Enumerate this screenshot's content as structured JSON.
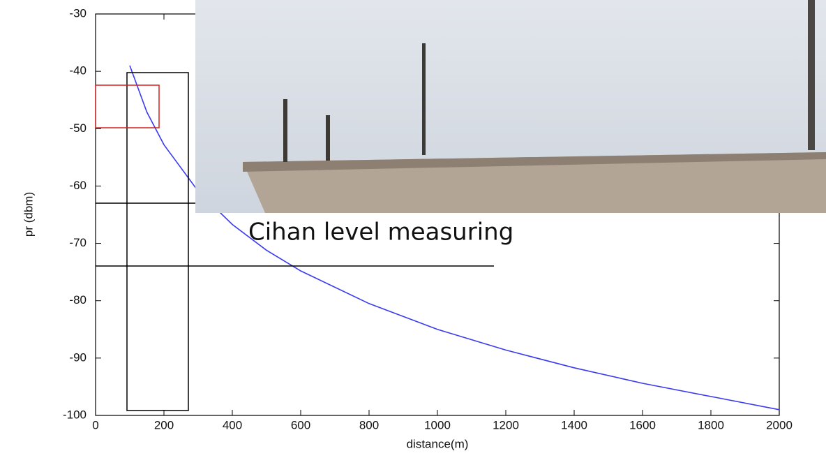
{
  "chart_data": {
    "type": "line",
    "xlabel": "distance(m)",
    "ylabel": "pr (dbm)",
    "annotation": "Cihan level  measuring",
    "x": [
      100,
      150,
      200,
      300,
      400,
      500,
      600,
      800,
      1000,
      1200,
      1400,
      1600,
      1800,
      2000
    ],
    "values": [
      -39,
      -47.1,
      -52.8,
      -60.9,
      -66.7,
      -71.2,
      -74.8,
      -80.5,
      -85,
      -88.6,
      -91.7,
      -94.4,
      -96.7,
      -99
    ],
    "color": "#3a3af0",
    "xlim": [
      0,
      2000
    ],
    "xticks": [
      0,
      200,
      400,
      600,
      800,
      1000,
      1200,
      1400,
      1600,
      1800,
      2000
    ],
    "ylim": [
      -100,
      -30
    ],
    "yticks": [
      -100,
      -90,
      -80,
      -70,
      -60,
      -50,
      -40,
      -30
    ],
    "grid": false
  }
}
